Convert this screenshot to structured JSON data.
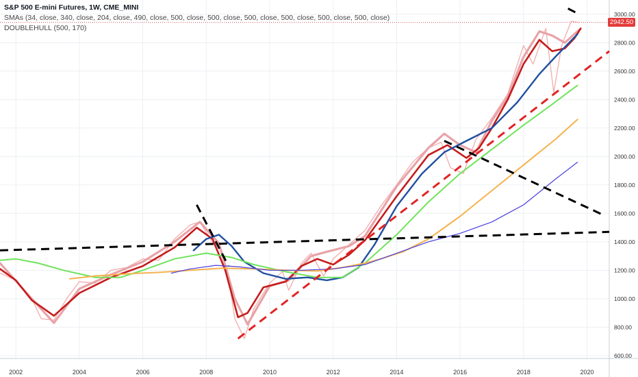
{
  "legend": {
    "title": "S&P 500 E-mini Futures, 1W, CME_MINI",
    "smas": "SMAs (34, close, 340, close, 204, close, 490, close, 500, close, 500, close, 500, close, 500, close, 500, close, 500, close)",
    "doublehull": "DOUBLEHULL (500, 170)"
  },
  "last_price": "2942.50",
  "colors": {
    "price": "#f1a3a3",
    "hull_red": "#c41c1c",
    "hull_pink": "#e8a3a8",
    "sma_blue": "#1f4fa0",
    "sma_green": "#6fe35a",
    "sma_orange": "#f5b24d",
    "sma_purple": "#4a3ee0",
    "trend_black": "#000000",
    "trend_red": "#e02424",
    "price_line": "#d0304a",
    "grid": "#eceff3",
    "axis_text": "#333333"
  },
  "chart_data": {
    "type": "line",
    "title": "S&P 500 E-mini Futures, 1W, CME_MINI",
    "xlim": [
      2001.5,
      2020.7
    ],
    "ylim": [
      580,
      3100
    ],
    "x_ticks": [
      "2002",
      "2004",
      "2006",
      "2008",
      "2010",
      "2012",
      "2014",
      "2016",
      "2018",
      "2020"
    ],
    "y_ticks": [
      "600.00",
      "800.00",
      "1000.00",
      "1200.00",
      "1400.00",
      "1600.00",
      "1800.00",
      "2000.00",
      "2200.00",
      "2400.00",
      "2600.00",
      "2800.00",
      "3000.00"
    ],
    "last_price": 2942.5,
    "grid": true,
    "series": [
      {
        "color": "#f1a3a3",
        "x": [
          2001.5,
          2002.0,
          2002.5,
          2002.8,
          2003.2,
          2003.6,
          2004.0,
          2004.5,
          2005.0,
          2005.5,
          2006.0,
          2006.5,
          2007.0,
          2007.5,
          2007.8,
          2008.3,
          2008.7,
          2008.9,
          2009.2,
          2009.5,
          2010.0,
          2010.4,
          2010.6,
          2011.0,
          2011.3,
          2011.7,
          2012.0,
          2012.5,
          2013.0,
          2013.5,
          2014.0,
          2014.5,
          2015.0,
          2015.4,
          2015.7,
          2016.1,
          2016.5,
          2017.0,
          2017.5,
          2018.0,
          2018.3,
          2018.7,
          2018.95,
          2019.2,
          2019.5,
          2019.75
        ],
        "values": [
          1180,
          1130,
          1000,
          860,
          850,
          1000,
          1120,
          1110,
          1200,
          1220,
          1280,
          1270,
          1420,
          1520,
          1540,
          1360,
          1150,
          860,
          720,
          930,
          1110,
          1190,
          1060,
          1250,
          1320,
          1160,
          1280,
          1380,
          1480,
          1650,
          1800,
          1960,
          2060,
          2100,
          1920,
          1880,
          2120,
          2270,
          2440,
          2780,
          2650,
          2900,
          2450,
          2780,
          2950,
          2942
        ]
      },
      {
        "color": "#e8a3a8",
        "x": [
          2001.5,
          2002.5,
          2003.2,
          2004.0,
          2005.0,
          2006.0,
          2007.0,
          2007.8,
          2008.4,
          2008.9,
          2009.3,
          2010.0,
          2010.6,
          2011.3,
          2011.8,
          2012.5,
          2013.0,
          2014.0,
          2015.0,
          2015.5,
          2016.0,
          2016.5,
          2017.0,
          2017.5,
          2018.0,
          2018.5,
          2018.9,
          2019.3,
          2019.75
        ],
        "values": [
          1250,
          1000,
          830,
          1070,
          1170,
          1260,
          1400,
          1540,
          1390,
          1000,
          820,
          1090,
          1130,
          1300,
          1330,
          1370,
          1440,
          1790,
          2060,
          2160,
          2080,
          2030,
          2250,
          2420,
          2700,
          2880,
          2850,
          2800,
          2890
        ]
      },
      {
        "color": "#c41c1c",
        "x": [
          2001.5,
          2002.0,
          2002.5,
          2003.2,
          2004.0,
          2005.0,
          2006.0,
          2007.0,
          2007.7,
          2008.2,
          2008.6,
          2009.0,
          2009.3,
          2009.8,
          2010.5,
          2011.0,
          2011.5,
          2012.0,
          2012.5,
          2013.0,
          2014.0,
          2015.0,
          2015.6,
          2016.2,
          2016.6,
          2017.0,
          2017.5,
          2018.0,
          2018.5,
          2018.9,
          2019.3,
          2019.6,
          2019.8
        ],
        "values": [
          1210,
          1130,
          990,
          880,
          1040,
          1150,
          1230,
          1360,
          1500,
          1420,
          1200,
          870,
          900,
          1080,
          1120,
          1230,
          1280,
          1240,
          1310,
          1410,
          1720,
          2010,
          2080,
          1990,
          2060,
          2200,
          2400,
          2650,
          2820,
          2740,
          2760,
          2830,
          2900
        ]
      },
      {
        "color": "#1f4fa0",
        "x": [
          2007.6,
          2008.0,
          2008.4,
          2008.8,
          2009.2,
          2009.8,
          2010.5,
          2011.2,
          2011.8,
          2012.3,
          2012.8,
          2013.3,
          2014.0,
          2014.8,
          2015.5,
          2016.2,
          2017.0,
          2017.8,
          2018.5,
          2019.0,
          2019.7
        ],
        "values": [
          1340,
          1420,
          1450,
          1370,
          1260,
          1180,
          1140,
          1150,
          1130,
          1150,
          1220,
          1380,
          1650,
          1880,
          2030,
          2110,
          2200,
          2380,
          2580,
          2700,
          2860
        ]
      },
      {
        "color": "#6fe35a",
        "x": [
          2001.5,
          2002.0,
          2002.7,
          2003.5,
          2004.5,
          2005.3,
          2006.0,
          2007.0,
          2008.0,
          2008.8,
          2009.5,
          2010.5,
          2011.5,
          2012.3,
          2013.0,
          2014.0,
          2015.0,
          2016.0,
          2017.0,
          2018.0,
          2018.8,
          2019.7
        ],
        "values": [
          1270,
          1280,
          1250,
          1200,
          1150,
          1150,
          1200,
          1280,
          1320,
          1290,
          1240,
          1190,
          1150,
          1150,
          1250,
          1450,
          1680,
          1880,
          2050,
          2220,
          2350,
          2500
        ]
      },
      {
        "color": "#f5b24d",
        "x": [
          2003.7,
          2004.5,
          2005.5,
          2006.5,
          2007.5,
          2008.5,
          2009.5,
          2010.5,
          2011.5,
          2012.3,
          2013.0,
          2013.5,
          2014.2,
          2015.0,
          2016.0,
          2017.0,
          2018.0,
          2019.0,
          2019.7
        ],
        "values": [
          1140,
          1160,
          1175,
          1185,
          1200,
          1215,
          1210,
          1200,
          1195,
          1220,
          1250,
          1280,
          1330,
          1420,
          1580,
          1760,
          1940,
          2120,
          2260
        ]
      },
      {
        "color": "#4a3ee0",
        "x": [
          2006.9,
          2007.5,
          2008.3,
          2009.0,
          2010.0,
          2011.0,
          2012.0,
          2013.0,
          2014.0,
          2015.0,
          2016.0,
          2017.0,
          2018.0,
          2019.0,
          2019.7
        ],
        "values": [
          1180,
          1210,
          1235,
          1225,
          1200,
          1200,
          1210,
          1240,
          1320,
          1400,
          1460,
          1540,
          1660,
          1840,
          1960
        ]
      }
    ],
    "trendlines": [
      {
        "color": "#000000",
        "style": "dashed",
        "x": [
          2001.5,
          2020.7
        ],
        "y": [
          1340,
          1470
        ]
      },
      {
        "color": "#000000",
        "style": "dashed",
        "x": [
          2007.7,
          2008.7
        ],
        "y": [
          1660,
          1230
        ]
      },
      {
        "color": "#000000",
        "style": "dashed",
        "x": [
          2015.5,
          2020.5
        ],
        "y": [
          2110,
          1590
        ]
      },
      {
        "color": "#000000",
        "style": "dashed",
        "x": [
          2019.4,
          2019.75
        ],
        "y": [
          3040,
          3000
        ]
      },
      {
        "color": "#e02424",
        "style": "dashed",
        "x": [
          2009.0,
          2020.7
        ],
        "y": [
          720,
          2740
        ]
      }
    ]
  }
}
